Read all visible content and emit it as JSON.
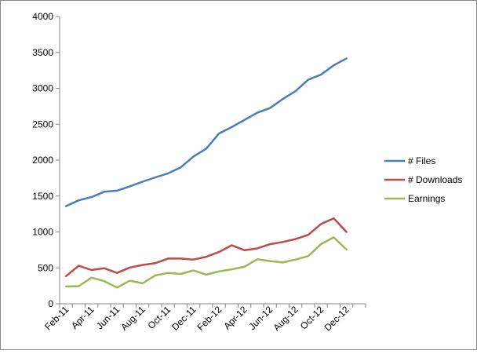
{
  "chart_data": {
    "type": "line",
    "title": "",
    "xlabel": "",
    "ylabel": "",
    "ylim": [
      0,
      4000
    ],
    "yticks": [
      0,
      500,
      1000,
      1500,
      2000,
      2500,
      3000,
      3500,
      4000
    ],
    "grid": false,
    "legend_position": "right",
    "categories": [
      "Feb-11",
      "Mar-11",
      "Apr-11",
      "May-11",
      "Jun-11",
      "Jul-11",
      "Aug-11",
      "Sep-11",
      "Oct-11",
      "Nov-11",
      "Dec-11",
      "Jan-12",
      "Feb-12",
      "Mar-12",
      "Apr-12",
      "May-12",
      "Jun-12",
      "Jul-12",
      "Aug-12",
      "Sep-12",
      "Oct-12",
      "Nov-12",
      "Dec-12",
      "Jan-13"
    ],
    "tick_labels_shown": [
      "Feb-11",
      "Apr-11",
      "Jun-11",
      "Aug-11",
      "Oct-11",
      "Dec-11",
      "Feb-12",
      "Apr-12",
      "Jun-12",
      "Aug-12",
      "Oct-12",
      "Dec-12"
    ],
    "series": [
      {
        "name": "# Files",
        "color": "#4a7ebb",
        "values": [
          1360,
          1440,
          1485,
          1560,
          1575,
          1635,
          1700,
          1760,
          1815,
          1900,
          2050,
          2160,
          2370,
          2460,
          2560,
          2660,
          2725,
          2850,
          2960,
          3120,
          3190,
          3320,
          3415,
          null
        ]
      },
      {
        "name": "# Downloads",
        "color": "#be4b48",
        "values": [
          385,
          530,
          470,
          495,
          430,
          505,
          540,
          565,
          630,
          630,
          615,
          655,
          720,
          815,
          745,
          770,
          830,
          860,
          900,
          960,
          1110,
          1190,
          1000,
          null
        ]
      },
      {
        "name": "Earnings",
        "color": "#98b954",
        "values": [
          240,
          245,
          365,
          315,
          225,
          320,
          285,
          395,
          430,
          415,
          465,
          405,
          450,
          480,
          515,
          620,
          595,
          575,
          615,
          665,
          830,
          925,
          755,
          null
        ]
      }
    ]
  }
}
